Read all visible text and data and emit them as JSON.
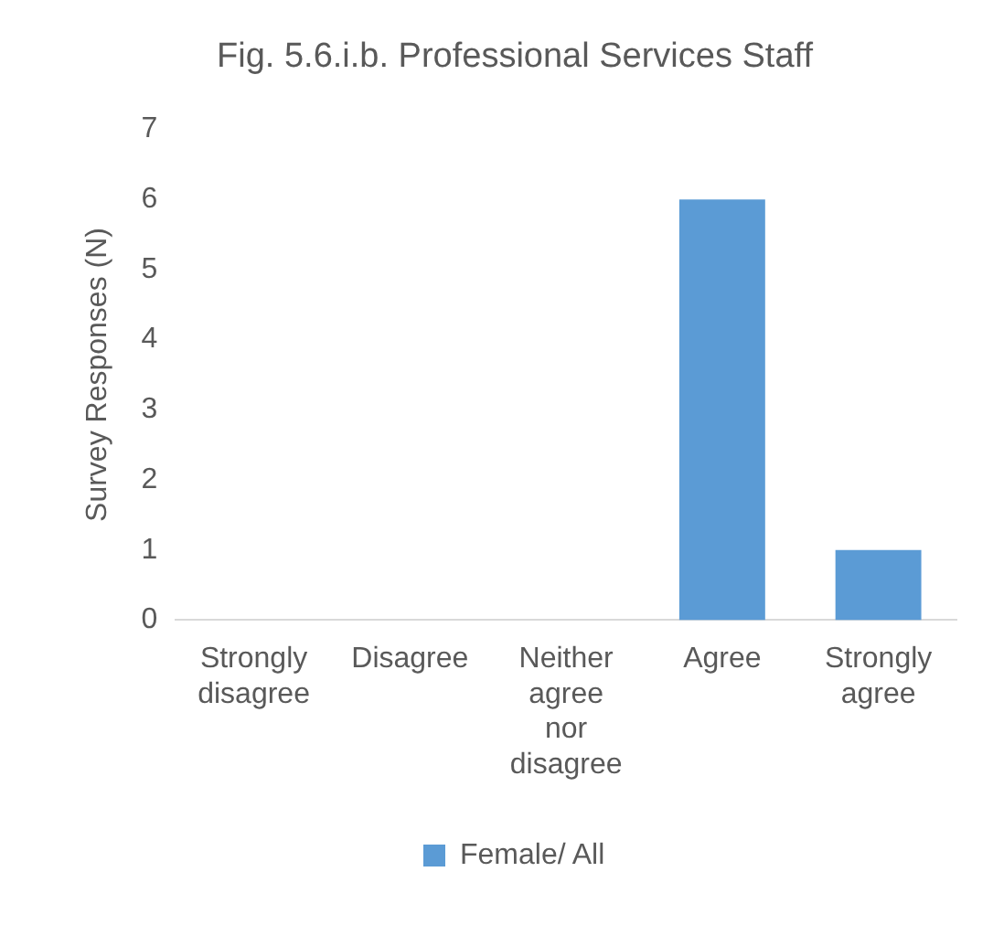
{
  "chart_data": {
    "type": "bar",
    "title": "Fig. 5.6.i.b. Professional Services Staff",
    "ylabel": "Survey Responses (N)",
    "categories": [
      "Strongly disagree",
      "Disagree",
      "Neither agree nor disagree",
      "Agree",
      "Strongly agree"
    ],
    "series": [
      {
        "name": "Female/ All",
        "color": "#5b9bd5",
        "values": [
          0,
          0,
          0,
          6,
          1
        ]
      }
    ],
    "ylim": [
      0,
      7
    ],
    "yticks": [
      0,
      1,
      2,
      3,
      4,
      5,
      6,
      7
    ],
    "grid": false,
    "legend": "bottom"
  }
}
